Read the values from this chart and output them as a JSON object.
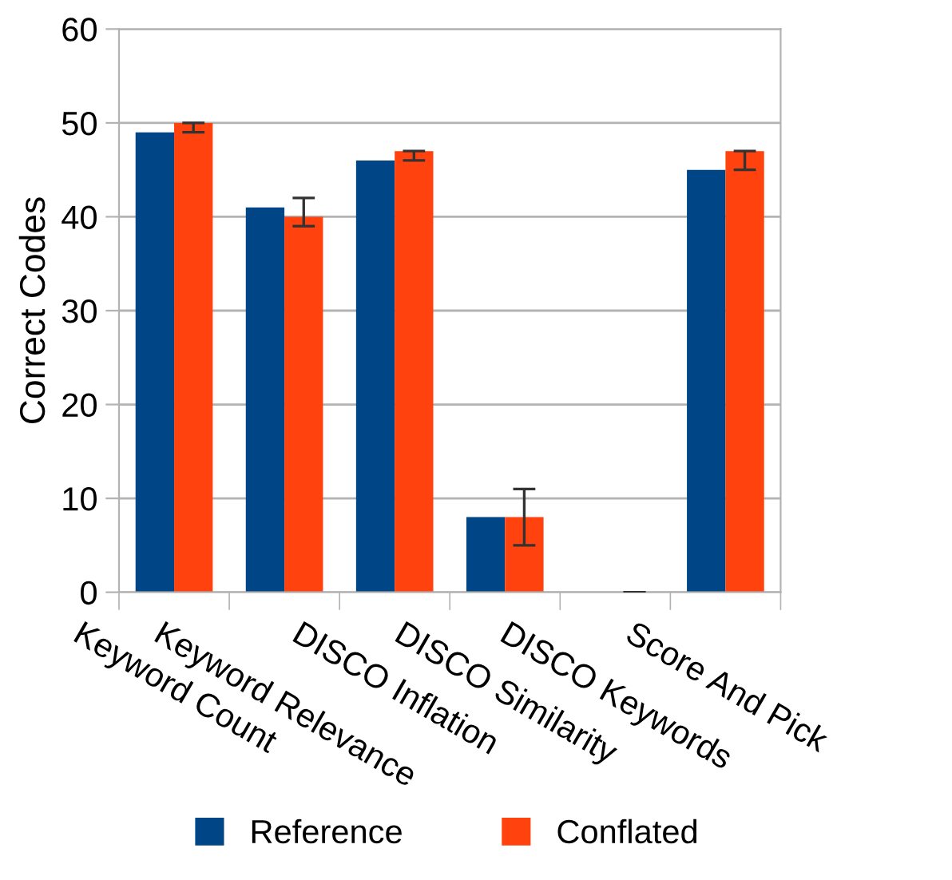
{
  "chart_data": {
    "type": "bar",
    "ylabel": "Correct Codes",
    "categories": [
      "Keyword Count",
      "Keyword Relevance",
      "DISCO Inflation",
      "DISCO Similarity",
      "DISCO Keywords",
      "Score And Pick"
    ],
    "series": [
      {
        "name": "Reference",
        "color": "#004586",
        "values": [
          49,
          41,
          46,
          8,
          0,
          45
        ]
      },
      {
        "name": "Conflated",
        "color": "#ff420e",
        "values": [
          50,
          40,
          47,
          8,
          0,
          47
        ],
        "errors": [
          [
            49,
            50
          ],
          [
            39,
            42
          ],
          [
            46,
            47
          ],
          [
            5,
            11
          ],
          [
            0,
            0
          ],
          [
            45,
            47
          ]
        ]
      }
    ],
    "ylim": [
      0,
      60
    ],
    "yticks": [
      0,
      10,
      20,
      30,
      40,
      50,
      60
    ],
    "grid": "y",
    "legend": "bottom"
  }
}
